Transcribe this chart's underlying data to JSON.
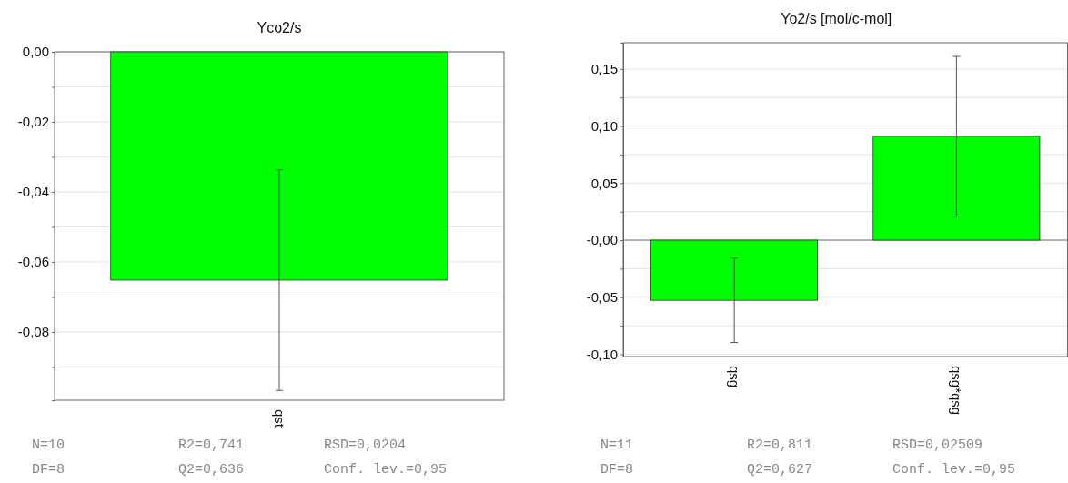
{
  "chart_data": [
    {
      "type": "bar",
      "title": "Yco2/s",
      "categories": [
        "qst"
      ],
      "series": [
        {
          "color": "#00ff00",
          "values": [
            -0.0652
          ],
          "errors": [
            0.0315
          ]
        }
      ],
      "ylim": [
        -0.0995,
        0
      ],
      "yticks": [
        {
          "value": 0,
          "label": "0,00"
        },
        {
          "value": -0.01,
          "label": null
        },
        {
          "value": -0.02,
          "label": "-0,02"
        },
        {
          "value": -0.03,
          "label": null
        },
        {
          "value": -0.04,
          "label": "-0,04"
        },
        {
          "value": -0.05,
          "label": null
        },
        {
          "value": -0.06,
          "label": "-0,06"
        },
        {
          "value": -0.07,
          "label": null
        },
        {
          "value": -0.08,
          "label": "-0,08"
        },
        {
          "value": -0.09,
          "label": null
        }
      ],
      "grid": "y",
      "annotations": [
        "N=10",
        "R2=0,741",
        "RSD=0,0204",
        "DF=8",
        "Q2=0,636",
        "Conf. lev.=0,95"
      ]
    },
    {
      "type": "bar",
      "title": "Yo2/s [mol/c-mol]",
      "categories": [
        "qsg",
        "qsg*qsg"
      ],
      "series": [
        {
          "color": "#00ff00",
          "values": [
            -0.0527,
            0.091
          ],
          "errors": [
            0.037,
            0.07
          ]
        }
      ],
      "ylim": [
        -0.102,
        0.173
      ],
      "yticks": [
        {
          "value": -0.1,
          "label": "-0,10"
        },
        {
          "value": -0.075,
          "label": null
        },
        {
          "value": -0.05,
          "label": "-0,05"
        },
        {
          "value": -0.025,
          "label": null
        },
        {
          "value": 0,
          "label": "-0,00"
        },
        {
          "value": 0.025,
          "label": null
        },
        {
          "value": 0.05,
          "label": "0,05"
        },
        {
          "value": 0.075,
          "label": null
        },
        {
          "value": 0.1,
          "label": "0,10"
        },
        {
          "value": 0.125,
          "label": null
        },
        {
          "value": 0.15,
          "label": "0,15"
        }
      ],
      "grid": "y",
      "annotations": [
        "N=11",
        "R2=0,811",
        "RSD=0,02509",
        "DF=8",
        "Q2=0,627",
        "Conf. lev.=0,95"
      ]
    }
  ]
}
